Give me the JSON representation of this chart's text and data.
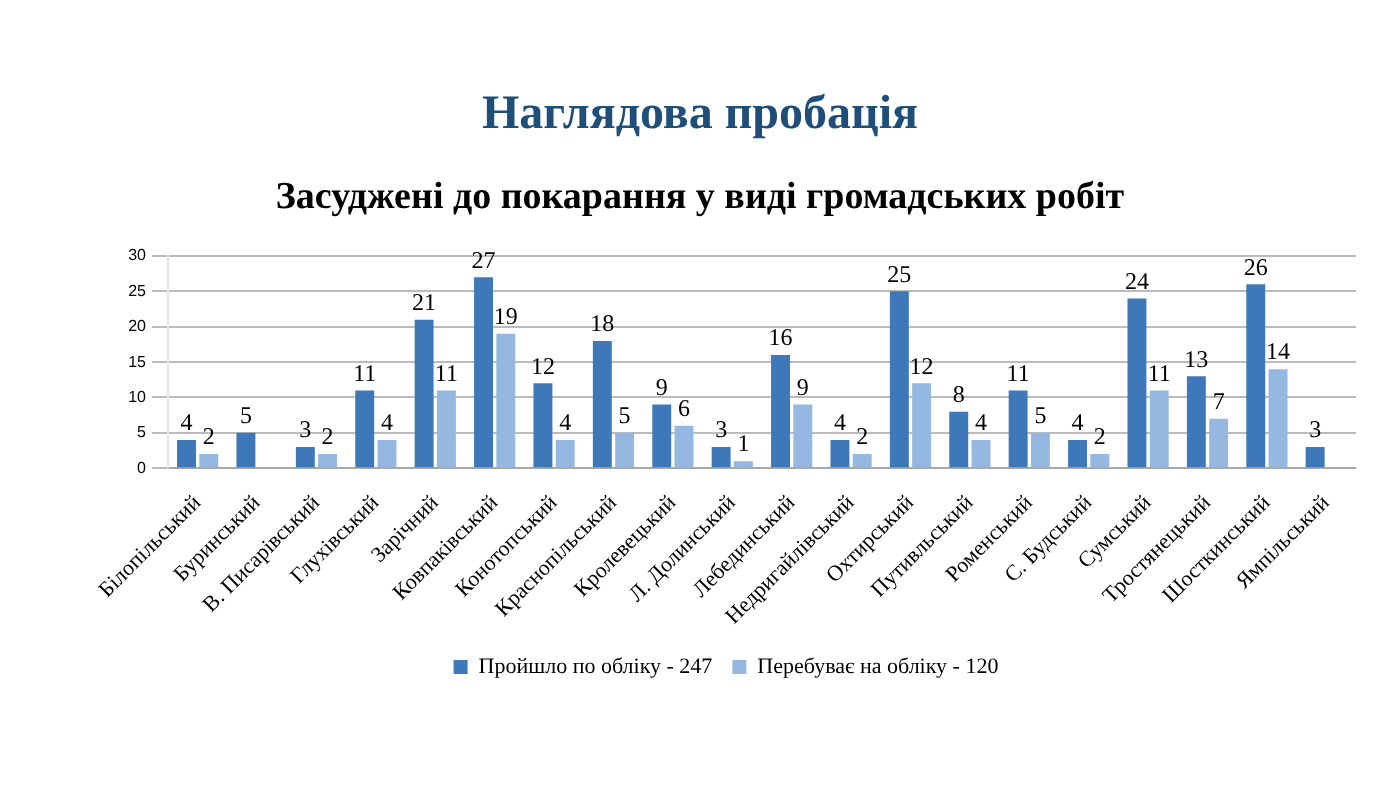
{
  "chart_data": {
    "type": "bar",
    "title": "Наглядова пробація",
    "subtitle": "Засуджені до покарання у виді громадських робіт",
    "categories": [
      "Білопільський",
      "Буринський",
      "В. Писарівський",
      "Глухівський",
      "Зарічний",
      "Ковпаківський",
      "Конотопський",
      "Краснопільський",
      "Кролевецький",
      "Л. Долинський",
      "Лебединський",
      "Недригайлівський",
      "Охтирський",
      "Путивльський",
      "Роменський",
      "С. Будський",
      "Сумський",
      "Тростянецький",
      "Шосткинський",
      "Ямпільський"
    ],
    "series": [
      {
        "name": "Пройшло по обліку - 247",
        "color": "#3f78b8",
        "values": [
          4,
          5,
          3,
          11,
          21,
          27,
          12,
          18,
          9,
          3,
          16,
          4,
          25,
          8,
          11,
          4,
          24,
          13,
          26,
          3
        ]
      },
      {
        "name": "Перебуває на обліку - 120",
        "color": "#95b8e0",
        "values": [
          2,
          null,
          2,
          4,
          11,
          19,
          4,
          5,
          6,
          1,
          9,
          2,
          12,
          4,
          5,
          2,
          11,
          7,
          14,
          null
        ]
      }
    ],
    "ylim": [
      0,
      30
    ],
    "yticks": [
      0,
      5,
      10,
      15,
      20,
      25,
      30
    ],
    "grid": "y",
    "legend": "bottom",
    "data_labels": true
  }
}
